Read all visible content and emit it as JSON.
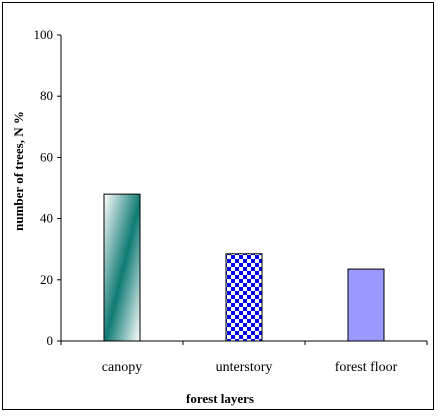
{
  "chart_data": {
    "type": "bar",
    "title": "",
    "xlabel": "forest layers",
    "ylabel": "number of trees, N %",
    "categories": [
      "canopy",
      "unterstory",
      "forest floor"
    ],
    "values": [
      48,
      28.5,
      23.5
    ],
    "ylim": [
      0,
      100
    ],
    "yticks": [
      0,
      20,
      40,
      60,
      80,
      100
    ],
    "grid": false,
    "legend": "none",
    "bar_styles": [
      "gradient-teal",
      "blue-checker",
      "lavender-solid"
    ],
    "colors": {
      "teal": "#0f7a74",
      "checker_blue": "#0000ee",
      "lavender": "#9999ff",
      "axis": "#000000"
    }
  }
}
